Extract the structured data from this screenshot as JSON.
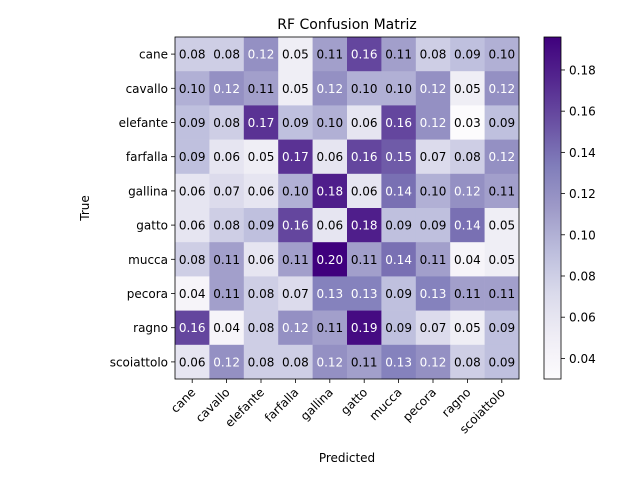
{
  "chart_data": {
    "type": "heatmap",
    "title": "RF Confusion Matriz",
    "xlabel": "Predicted",
    "ylabel": "True",
    "x_categories": [
      "cane",
      "cavallo",
      "elefante",
      "farfalla",
      "gallina",
      "gatto",
      "mucca",
      "pecora",
      "ragno",
      "scoiattolo"
    ],
    "y_categories": [
      "cane",
      "cavallo",
      "elefante",
      "farfalla",
      "gallina",
      "gatto",
      "mucca",
      "pecora",
      "ragno",
      "scoiattolo"
    ],
    "values": [
      [
        0.08,
        0.08,
        0.12,
        0.05,
        0.11,
        0.16,
        0.11,
        0.08,
        0.09,
        0.1
      ],
      [
        0.1,
        0.12,
        0.11,
        0.05,
        0.12,
        0.1,
        0.1,
        0.12,
        0.05,
        0.12
      ],
      [
        0.09,
        0.08,
        0.17,
        0.09,
        0.1,
        0.06,
        0.16,
        0.12,
        0.03,
        0.09
      ],
      [
        0.09,
        0.06,
        0.05,
        0.17,
        0.06,
        0.16,
        0.15,
        0.07,
        0.08,
        0.12
      ],
      [
        0.06,
        0.07,
        0.06,
        0.1,
        0.18,
        0.06,
        0.14,
        0.1,
        0.12,
        0.11
      ],
      [
        0.06,
        0.08,
        0.09,
        0.16,
        0.06,
        0.18,
        0.09,
        0.09,
        0.14,
        0.05
      ],
      [
        0.08,
        0.11,
        0.06,
        0.11,
        0.2,
        0.11,
        0.14,
        0.11,
        0.04,
        0.05
      ],
      [
        0.04,
        0.11,
        0.08,
        0.07,
        0.13,
        0.13,
        0.09,
        0.13,
        0.11,
        0.11
      ],
      [
        0.16,
        0.04,
        0.08,
        0.12,
        0.11,
        0.19,
        0.09,
        0.07,
        0.05,
        0.09
      ],
      [
        0.06,
        0.12,
        0.08,
        0.08,
        0.12,
        0.11,
        0.13,
        0.12,
        0.08,
        0.09
      ]
    ],
    "colormap": "Purples",
    "vmin": 0.03,
    "vmax": 0.196,
    "colorbar_ticks": [
      "0.04",
      "0.06",
      "0.08",
      "0.10",
      "0.12",
      "0.14",
      "0.16",
      "0.18"
    ],
    "grid": false,
    "legend": "colorbar right"
  }
}
